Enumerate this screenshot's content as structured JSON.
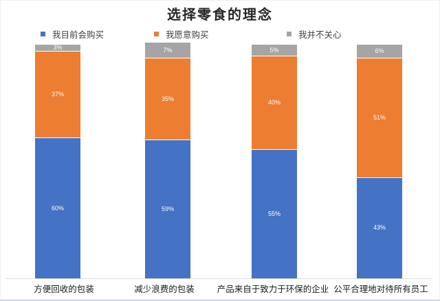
{
  "title": "选择零食的理念",
  "legend": [
    {
      "label": "我目前会购买",
      "color": "#4472C4"
    },
    {
      "label": "我愿意购买",
      "color": "#ED7D31"
    },
    {
      "label": "我并不关心",
      "color": "#A5A5A5"
    }
  ],
  "chart_data": {
    "type": "bar",
    "stacked": true,
    "title": "选择零食的理念",
    "categories": [
      "方便回收的包装",
      "减少浪费的包装",
      "产品来自于致力于环保的企业",
      "公平合理地对待所有员工"
    ],
    "series": [
      {
        "name": "我目前会购买",
        "color": "#4472C4",
        "values": [
          60,
          59,
          55,
          43
        ]
      },
      {
        "name": "我愿意购买",
        "color": "#ED7D31",
        "values": [
          37,
          35,
          40,
          51
        ]
      },
      {
        "name": "我并不关心",
        "color": "#A5A5A5",
        "values": [
          3,
          7,
          5,
          6
        ]
      }
    ],
    "value_suffix": "%",
    "data_labels": true,
    "label_color": "#FFFFFF",
    "xlabel": "",
    "ylabel": "",
    "ylim": [
      0,
      100
    ],
    "grid": false,
    "legend_position": "top",
    "axis_line_color": "#D9D9D9"
  }
}
